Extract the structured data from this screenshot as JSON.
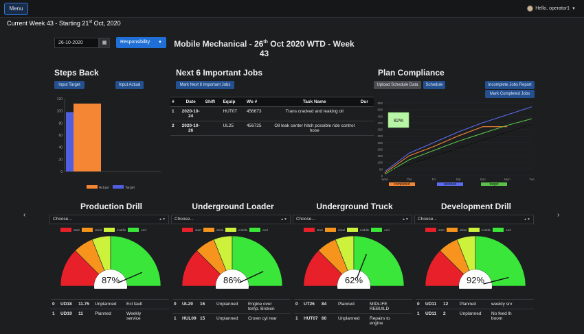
{
  "header": {
    "menu_label": "Menu",
    "user_label": "Hello, operator1",
    "week_prefix": "Current Week 43 - Starting 21",
    "week_sup": "st",
    "week_suffix": " Oct, 2020"
  },
  "controls": {
    "date_value": "26-10-2020",
    "responsibility_label": "Responsibility"
  },
  "title": {
    "line_prefix": "Mobile Mechanical - 26",
    "line_sup": "th",
    "line_suffix": " Oct 2020 WTD - Week",
    "line2": "43"
  },
  "steps_back": {
    "title": "Steps Back",
    "input_target_label": "Input Target",
    "input_actual_label": "Input Actual"
  },
  "important_jobs": {
    "title": "Next 6 Important Jobs",
    "mark_button_label": "Mark Next 6 Important Jobs",
    "columns": [
      "#",
      "Date",
      "Shift",
      "Equip",
      "Wo #",
      "Task Name",
      "Dur"
    ],
    "rows": [
      {
        "num": "1",
        "date1": "2020-10-",
        "date2": "24",
        "shift": "",
        "equip": "HUT07",
        "wo": "456673",
        "task1": "Trans cracked and leaking oil",
        "task2": "",
        "dur": ""
      },
      {
        "num": "2",
        "date1": "2020-10-",
        "date2": "26",
        "shift": "",
        "equip": "UL25",
        "wo": "456725",
        "task1": "Oil leak center hitch possible ride control",
        "task2": "hose",
        "dur": ""
      }
    ]
  },
  "plan_compliance": {
    "title": "Plan Compliance",
    "upload_label": "Upload Schedule Data",
    "schedule_label": "Schedule",
    "incomplete_label": "Incomplete Jobs Report",
    "mark_completed_label": "Mark Completed Jobs",
    "badge_value": "82%"
  },
  "chart_data": [
    {
      "type": "bar",
      "categories": [
        ""
      ],
      "series": [
        {
          "name": "Actual",
          "values": [
            112
          ],
          "color": "#f58634"
        },
        {
          "name": "Target",
          "values": [
            98
          ],
          "color": "#4f5fe0"
        }
      ],
      "y_ticks": [
        "0",
        "20",
        "40",
        "60",
        "80",
        "100",
        "120"
      ],
      "ylim": [
        0,
        120
      ]
    },
    {
      "type": "line",
      "categories": [
        "Wed",
        "Thu",
        "Fri",
        "Sat",
        "Sun",
        "Mon",
        "Tue"
      ],
      "series": [
        {
          "name": "completed",
          "values": [
            20,
            150,
            220,
            300,
            370,
            370,
            null
          ],
          "color": "#f58634"
        },
        {
          "name": "planned",
          "values": [
            30,
            170,
            250,
            330,
            400,
            460,
            520
          ],
          "color": "#5b6cf0"
        },
        {
          "name": "target",
          "values": [
            10,
            120,
            190,
            260,
            320,
            380,
            430
          ],
          "color": "#59c04a"
        }
      ],
      "y_ticks": [
        "0",
        "50",
        "100",
        "150",
        "200",
        "250",
        "300",
        "350",
        "400",
        "450",
        "500",
        "550"
      ],
      "ylim": [
        0,
        550
      ],
      "legend_labels": [
        "completed",
        "planned",
        "target"
      ]
    }
  ],
  "gauges": [
    {
      "title": "Production Drill",
      "choose_label": "Choose...",
      "value_label": "87%",
      "value": 87,
      "rows": [
        {
          "n": "0",
          "eq": "UD18",
          "hrs": "11.75",
          "type": "Unplanned",
          "desc": "Ecl fault",
          "desc2": ""
        },
        {
          "n": "1",
          "eq": "UD19",
          "hrs": "11",
          "type": "Planned",
          "desc": "Weekly",
          "desc2": "service"
        }
      ]
    },
    {
      "title": "Underground Loader",
      "choose_label": "Choose...",
      "value_label": "86%",
      "value": 86,
      "rows": [
        {
          "n": "0",
          "eq": "UL29",
          "hrs": "16",
          "type": "Unplanned",
          "desc": "Engine over",
          "desc2": "temp. Broken"
        },
        {
          "n": "1",
          "eq": "HUL09",
          "hrs": "15",
          "type": "Unplanned",
          "desc": "Crown cyl rear",
          "desc2": ""
        }
      ]
    },
    {
      "title": "Underground Truck",
      "choose_label": "Choose...",
      "value_label": "62%",
      "value": 62,
      "rows": [
        {
          "n": "0",
          "eq": "UT26",
          "hrs": "84",
          "type": "Planned",
          "desc": "MIDLIFE",
          "desc2": "REBUILD"
        },
        {
          "n": "1",
          "eq": "HUT07",
          "hrs": "60",
          "type": "Unplanned",
          "desc": "Repairs to",
          "desc2": "engine"
        }
      ]
    },
    {
      "title": "Development Drill",
      "choose_label": "Choose...",
      "value_label": "92%",
      "value": 92,
      "rows": [
        {
          "n": "0",
          "eq": "UD11",
          "hrs": "12",
          "type": "Planned",
          "desc": "weekly srv",
          "desc2": ""
        },
        {
          "n": "1",
          "eq": "UD11",
          "hrs": "2",
          "type": "Unplanned",
          "desc": "No feed lh",
          "desc2": "boom"
        }
      ]
    }
  ],
  "gauge_legend": [
    "start",
    "initial",
    "middle",
    "end"
  ],
  "gauge_colors": [
    "#e8202a",
    "#f7941d",
    "#ccf23c",
    "#39e639"
  ]
}
